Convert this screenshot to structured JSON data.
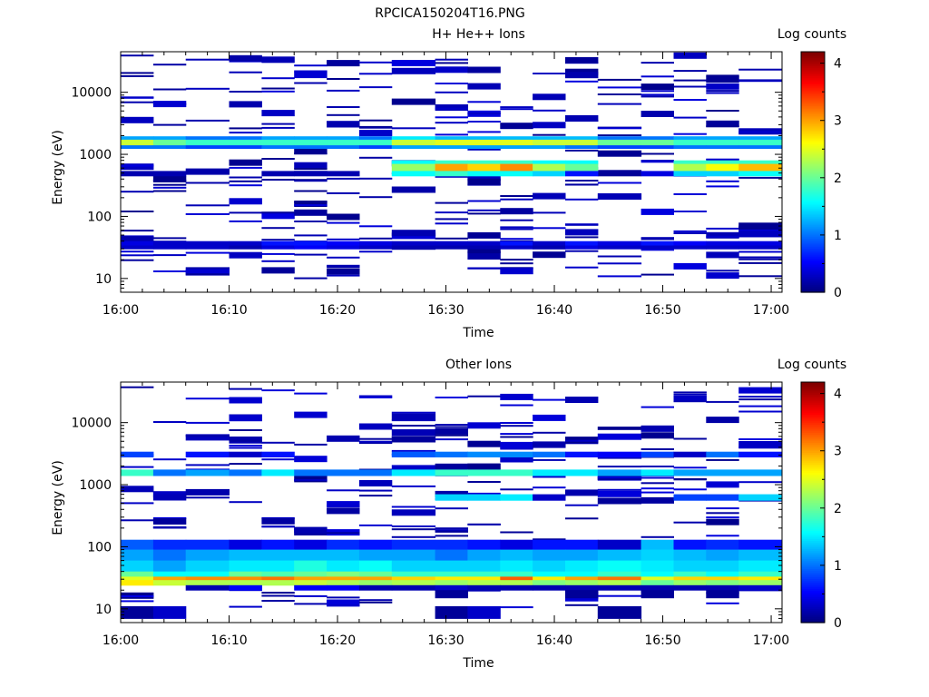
{
  "figure": {
    "title": "RPCICA150204T16.PNG"
  },
  "chart_data": [
    {
      "type": "heatmap",
      "title": "H+ He++ Ions",
      "xlabel": "Time",
      "ylabel": "Energy (eV)",
      "x_scale": "time",
      "y_scale": "log",
      "x_ticks": [
        "16:00",
        "16:10",
        "16:20",
        "16:30",
        "16:40",
        "16:50",
        "17:00"
      ],
      "xlim": [
        "16:00",
        "17:01"
      ],
      "y_ticks": [
        "10",
        "100",
        "1000",
        "10000"
      ],
      "ylim": [
        6,
        45000
      ],
      "time_bins": [
        "16:00",
        "16:03",
        "16:06",
        "16:10",
        "16:13",
        "16:16",
        "16:19",
        "16:22",
        "16:25",
        "16:29",
        "16:32",
        "16:35",
        "16:38",
        "16:41",
        "16:44",
        "16:48",
        "16:51",
        "16:54",
        "16:57"
      ],
      "colorbar": {
        "label": "Log counts",
        "ticks": [
          "0",
          "1",
          "2",
          "3",
          "4"
        ],
        "range": [
          0,
          4.2
        ]
      },
      "bands": [
        {
          "e_low": 1400,
          "e_high": 1750,
          "levels": [
            2.4,
            2.0,
            1.8,
            1.8,
            1.8,
            1.8,
            1.8,
            1.8,
            2.4,
            2.5,
            2.5,
            2.5,
            2.4,
            2.4,
            2.0,
            2.0,
            1.8,
            1.8,
            1.8
          ]
        },
        {
          "e_low": 1750,
          "e_high": 1950,
          "levels": [
            1.2,
            1.2,
            1.0,
            1.0,
            1.2,
            1.2,
            1.2,
            1.0,
            1.5,
            1.3,
            1.3,
            1.3,
            1.3,
            1.3,
            1.0,
            1.0,
            1.2,
            1.2,
            1.2
          ]
        },
        {
          "e_low": 1250,
          "e_high": 1400,
          "levels": [
            1.0,
            1.0,
            0.8,
            0.8,
            1.0,
            1.0,
            1.0,
            0.8,
            1.2,
            1.2,
            1.2,
            1.2,
            1.2,
            1.0,
            0.8,
            0.8,
            1.0,
            1.0,
            1.0
          ]
        },
        {
          "e_low": 700,
          "e_high": 800,
          "levels": [
            0,
            0,
            0,
            0,
            0,
            0,
            0,
            0,
            1.6,
            1.8,
            1.8,
            1.8,
            1.6,
            1.6,
            0,
            0,
            1.8,
            1.8,
            1.8
          ]
        },
        {
          "e_low": 540,
          "e_high": 700,
          "levels": [
            0,
            0,
            0,
            0,
            0,
            0,
            0,
            0,
            2.2,
            3.0,
            2.8,
            3.1,
            2.3,
            2.0,
            0,
            0,
            2.3,
            2.6,
            2.9
          ]
        },
        {
          "e_low": 450,
          "e_high": 540,
          "levels": [
            0.2,
            0.2,
            0,
            0,
            0.2,
            0.2,
            0.2,
            0,
            1.6,
            1.8,
            1.6,
            1.6,
            1.4,
            0.6,
            0,
            0.4,
            1.4,
            1.4,
            1.6
          ]
        },
        {
          "e_low": 34,
          "e_high": 40,
          "levels": [
            0.4,
            0.3,
            0.3,
            0.3,
            0.6,
            0.6,
            0.5,
            0.4,
            0.3,
            0.3,
            0.3,
            0.6,
            0.3,
            0.6,
            0.4,
            0.6,
            0.5,
            0.4,
            0.4
          ]
        },
        {
          "e_low": 30,
          "e_high": 34,
          "levels": [
            0.3,
            0.3,
            0.3,
            0.2,
            0.4,
            0.5,
            0.4,
            0.3,
            0.2,
            0.2,
            0.2,
            0.3,
            0.2,
            0.4,
            0.3,
            0.3,
            0.3,
            0.3,
            0.3
          ]
        }
      ],
      "scatter_counts": "sparse single-count lines at level 0.1–0.4 elsewhere"
    },
    {
      "type": "heatmap",
      "title": "Other Ions",
      "xlabel": "Time",
      "ylabel": "Energy (eV)",
      "x_scale": "time",
      "y_scale": "log",
      "x_ticks": [
        "16:00",
        "16:10",
        "16:20",
        "16:30",
        "16:40",
        "16:50",
        "17:00"
      ],
      "xlim": [
        "16:00",
        "17:01"
      ],
      "y_ticks": [
        "10",
        "100",
        "1000",
        "10000"
      ],
      "ylim": [
        6,
        45000
      ],
      "time_bins": [
        "16:00",
        "16:03",
        "16:06",
        "16:10",
        "16:13",
        "16:16",
        "16:19",
        "16:22",
        "16:25",
        "16:29",
        "16:32",
        "16:35",
        "16:38",
        "16:41",
        "16:44",
        "16:48",
        "16:51",
        "16:54",
        "16:57"
      ],
      "colorbar": {
        "label": "Log counts",
        "ticks": [
          "0",
          "1",
          "2",
          "3",
          "4"
        ],
        "range": [
          0,
          4.2
        ]
      },
      "bands": [
        {
          "e_low": 1400,
          "e_high": 1750,
          "levels": [
            1.8,
            1.0,
            1.2,
            1.0,
            1.5,
            1.0,
            1.0,
            1.0,
            1.5,
            1.8,
            1.8,
            1.8,
            1.5,
            1.5,
            1.2,
            1.5,
            1.2,
            1.2,
            1.2
          ]
        },
        {
          "e_low": 2800,
          "e_high": 3400,
          "levels": [
            0.8,
            0,
            0.6,
            0.3,
            0.6,
            0,
            0,
            0,
            0.9,
            1.0,
            1.1,
            1.1,
            1.0,
            0.6,
            0.5,
            0.8,
            0.3,
            1.0,
            0.6
          ]
        },
        {
          "e_low": 560,
          "e_high": 700,
          "levels": [
            0,
            0,
            0,
            0,
            0,
            0,
            0,
            0,
            0,
            1.4,
            1.4,
            1.5,
            0.3,
            0,
            0,
            0,
            0.8,
            0.8,
            1.4
          ]
        },
        {
          "e_low": 90,
          "e_high": 130,
          "levels": [
            0.9,
            0.7,
            0.7,
            0.4,
            0.6,
            0.4,
            0.7,
            0.6,
            0.7,
            0.7,
            0.6,
            0.4,
            0.6,
            0.6,
            0.3,
            1.3,
            0.6,
            0.7,
            0.6
          ]
        },
        {
          "e_low": 60,
          "e_high": 90,
          "levels": [
            1.2,
            1.0,
            1.2,
            1.3,
            1.3,
            1.3,
            1.3,
            1.2,
            1.2,
            1.0,
            1.2,
            1.3,
            1.2,
            1.2,
            1.3,
            1.4,
            1.3,
            1.2,
            1.3
          ]
        },
        {
          "e_low": 40,
          "e_high": 60,
          "levels": [
            1.4,
            1.2,
            1.4,
            1.5,
            1.5,
            1.7,
            1.5,
            1.6,
            1.4,
            1.4,
            1.4,
            1.5,
            1.4,
            1.5,
            1.6,
            1.5,
            1.4,
            1.4,
            1.5
          ]
        },
        {
          "e_low": 33,
          "e_high": 40,
          "levels": [
            2.0,
            1.6,
            1.6,
            2.0,
            1.9,
            2.0,
            2.1,
            2.0,
            1.8,
            1.8,
            1.8,
            1.8,
            1.6,
            1.6,
            1.8,
            1.6,
            1.8,
            1.6,
            1.8
          ]
        },
        {
          "e_low": 29,
          "e_high": 33,
          "levels": [
            2.5,
            3.0,
            3.1,
            3.1,
            3.2,
            3.0,
            3.0,
            3.0,
            2.8,
            2.7,
            2.7,
            3.3,
            2.7,
            3.0,
            3.2,
            2.5,
            2.8,
            2.8,
            2.7
          ]
        },
        {
          "e_low": 24,
          "e_high": 29,
          "levels": [
            2.7,
            2.4,
            2.3,
            2.3,
            2.3,
            2.4,
            2.3,
            2.2,
            2.3,
            2.2,
            2.3,
            2.3,
            2.1,
            2.2,
            2.3,
            2.0,
            2.2,
            2.1,
            2.2
          ]
        },
        {
          "e_low": 20,
          "e_high": 24,
          "levels": [
            0,
            0,
            0.2,
            0.5,
            0,
            0.5,
            0.5,
            0.2,
            0.2,
            0.3,
            0.2,
            0.2,
            0.2,
            0.2,
            0.2,
            0.2,
            0.2,
            0.2,
            0.3
          ]
        },
        {
          "e_low": 15,
          "e_high": 20,
          "levels": [
            0,
            0,
            0,
            0,
            0,
            0,
            0,
            0,
            0,
            0.1,
            0,
            0,
            0,
            0.1,
            0,
            0.1,
            0,
            0.1,
            0
          ]
        },
        {
          "e_low": 7,
          "e_high": 11,
          "levels": [
            0.1,
            0.3,
            0,
            0,
            0,
            0,
            0,
            0,
            0,
            0.1,
            0.3,
            0,
            0,
            0,
            0.1,
            0,
            0,
            0,
            0
          ]
        }
      ],
      "scatter_counts": "sparse single-count lines at level 0.1–0.4 elsewhere"
    }
  ]
}
